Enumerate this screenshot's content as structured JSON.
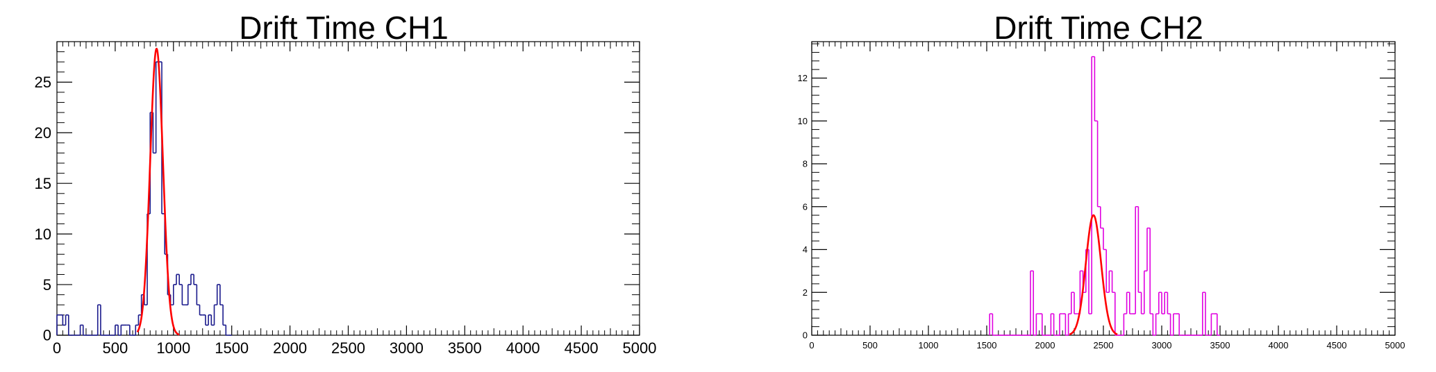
{
  "chart_data": [
    {
      "type": "histogram",
      "title": "Drift Time CH1",
      "xlim": [
        0,
        5000
      ],
      "ylim": [
        0,
        29
      ],
      "xticks": [
        "0",
        "500",
        "1000",
        "1500",
        "2000",
        "2500",
        "3000",
        "3500",
        "4000",
        "4500",
        "5000"
      ],
      "yticks": [
        "0",
        "5",
        "10",
        "15",
        "20",
        "25"
      ],
      "hist_color": "#1a1a8c",
      "fit_color": "#ff0000",
      "bin_width": 25,
      "bins": [
        [
          0,
          2
        ],
        [
          25,
          2
        ],
        [
          50,
          1
        ],
        [
          75,
          2
        ],
        [
          100,
          0
        ],
        [
          125,
          0
        ],
        [
          150,
          0
        ],
        [
          175,
          0
        ],
        [
          200,
          1
        ],
        [
          225,
          0
        ],
        [
          250,
          0
        ],
        [
          275,
          0
        ],
        [
          300,
          0
        ],
        [
          325,
          0
        ],
        [
          350,
          3
        ],
        [
          375,
          0
        ],
        [
          400,
          0
        ],
        [
          425,
          0
        ],
        [
          450,
          0
        ],
        [
          475,
          0
        ],
        [
          500,
          1
        ],
        [
          525,
          0
        ],
        [
          550,
          1
        ],
        [
          575,
          1
        ],
        [
          600,
          1
        ],
        [
          625,
          0
        ],
        [
          650,
          0
        ],
        [
          675,
          1
        ],
        [
          700,
          2
        ],
        [
          725,
          4
        ],
        [
          750,
          3
        ],
        [
          775,
          12
        ],
        [
          800,
          22
        ],
        [
          825,
          18
        ],
        [
          850,
          27
        ],
        [
          875,
          27
        ],
        [
          900,
          12
        ],
        [
          925,
          8
        ],
        [
          950,
          4
        ],
        [
          975,
          3
        ],
        [
          1000,
          5
        ],
        [
          1025,
          6
        ],
        [
          1050,
          5
        ],
        [
          1075,
          3
        ],
        [
          1100,
          3
        ],
        [
          1125,
          5
        ],
        [
          1150,
          6
        ],
        [
          1175,
          5
        ],
        [
          1200,
          3
        ],
        [
          1225,
          2
        ],
        [
          1250,
          2
        ],
        [
          1275,
          1
        ],
        [
          1300,
          2
        ],
        [
          1325,
          1
        ],
        [
          1350,
          3
        ],
        [
          1375,
          5
        ],
        [
          1400,
          3
        ],
        [
          1425,
          1
        ],
        [
          1450,
          0
        ],
        [
          1475,
          0
        ]
      ],
      "fit": {
        "amplitude": 28.3,
        "mean": 855,
        "sigma": 55,
        "range": [
          690,
          1050
        ]
      }
    },
    {
      "type": "histogram",
      "title": "Drift Time CH2",
      "xlim": [
        0,
        5000
      ],
      "ylim": [
        0,
        13.7
      ],
      "xticks": [
        "0",
        "500",
        "1000",
        "1500",
        "2000",
        "2500",
        "3000",
        "3500",
        "4000",
        "4500",
        "5000"
      ],
      "yticks": [
        "0",
        "2",
        "4",
        "6",
        "8",
        "10",
        "12"
      ],
      "hist_color": "#e000e0",
      "fit_color": "#ff0000",
      "bin_width": 25,
      "bins": [
        [
          1525,
          1
        ],
        [
          1550,
          0
        ],
        [
          1575,
          0
        ],
        [
          1600,
          0
        ],
        [
          1625,
          0
        ],
        [
          1650,
          0
        ],
        [
          1675,
          0
        ],
        [
          1700,
          0
        ],
        [
          1725,
          0
        ],
        [
          1750,
          0
        ],
        [
          1775,
          0
        ],
        [
          1800,
          0
        ],
        [
          1825,
          0
        ],
        [
          1850,
          0
        ],
        [
          1875,
          3
        ],
        [
          1900,
          0
        ],
        [
          1925,
          1
        ],
        [
          1950,
          1
        ],
        [
          1975,
          0
        ],
        [
          2000,
          0
        ],
        [
          2025,
          0
        ],
        [
          2050,
          1
        ],
        [
          2075,
          0
        ],
        [
          2100,
          0
        ],
        [
          2125,
          1
        ],
        [
          2150,
          1
        ],
        [
          2175,
          0
        ],
        [
          2200,
          1
        ],
        [
          2225,
          2
        ],
        [
          2250,
          1
        ],
        [
          2275,
          1
        ],
        [
          2300,
          3
        ],
        [
          2325,
          2
        ],
        [
          2350,
          4
        ],
        [
          2375,
          1
        ],
        [
          2400,
          13
        ],
        [
          2425,
          10
        ],
        [
          2450,
          6
        ],
        [
          2475,
          5
        ],
        [
          2500,
          4
        ],
        [
          2525,
          2
        ],
        [
          2550,
          3
        ],
        [
          2575,
          2
        ],
        [
          2600,
          0
        ],
        [
          2625,
          0
        ],
        [
          2650,
          0
        ],
        [
          2675,
          1
        ],
        [
          2700,
          2
        ],
        [
          2725,
          1
        ],
        [
          2750,
          1
        ],
        [
          2775,
          6
        ],
        [
          2800,
          2
        ],
        [
          2825,
          1
        ],
        [
          2850,
          3
        ],
        [
          2875,
          5
        ],
        [
          2900,
          1
        ],
        [
          2925,
          0
        ],
        [
          2950,
          1
        ],
        [
          2975,
          2
        ],
        [
          3000,
          1
        ],
        [
          3025,
          2
        ],
        [
          3050,
          1
        ],
        [
          3075,
          0
        ],
        [
          3100,
          1
        ],
        [
          3125,
          1
        ],
        [
          3150,
          0
        ],
        [
          3175,
          0
        ],
        [
          3200,
          0
        ],
        [
          3225,
          0
        ],
        [
          3250,
          0
        ],
        [
          3275,
          0
        ],
        [
          3300,
          0
        ],
        [
          3325,
          0
        ],
        [
          3350,
          2
        ],
        [
          3375,
          0
        ],
        [
          3400,
          0
        ],
        [
          3425,
          1
        ],
        [
          3450,
          1
        ],
        [
          3475,
          0
        ]
      ],
      "fit": {
        "amplitude": 5.6,
        "mean": 2415,
        "sigma": 65,
        "range": [
          2210,
          2620
        ]
      }
    }
  ]
}
